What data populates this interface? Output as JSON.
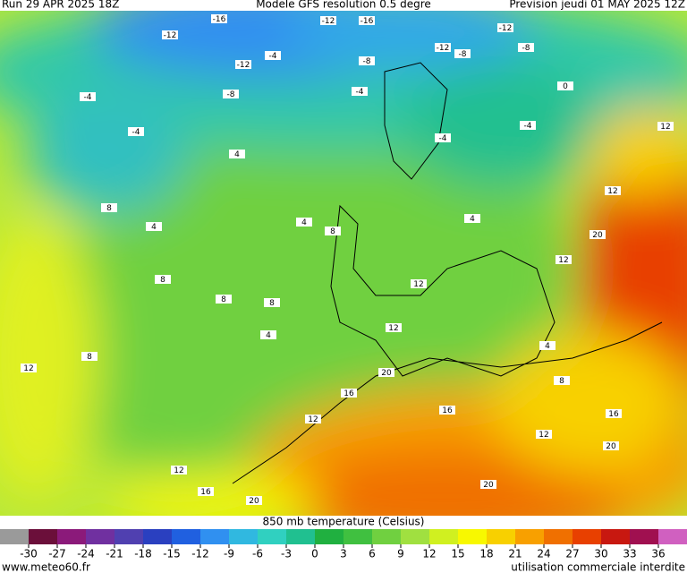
{
  "header": {
    "left": "Run 29 APR 2025 18Z",
    "center": "Modele GFS resolution 0.5 degre",
    "right": "Prevision jeudi 01 MAY 2025 12Z"
  },
  "map": {
    "contour_labels": [
      -16,
      -12,
      -12,
      -16,
      -12,
      -12,
      -4,
      -8,
      -12,
      -8,
      -8,
      -4,
      -8,
      -4,
      -4,
      -4,
      -4,
      0,
      12,
      4,
      8,
      4,
      4,
      8,
      4,
      12,
      20,
      12,
      12,
      8,
      8,
      8,
      4,
      12,
      8,
      12,
      20,
      16,
      12,
      16,
      12,
      16,
      20,
      12,
      16,
      20,
      20,
      4,
      8
    ]
  },
  "colorbar": {
    "title": "850 mb temperature (Celsius)",
    "lim": [
      -33,
      39
    ],
    "ticks": [
      -30,
      -27,
      -24,
      -21,
      -18,
      -15,
      -12,
      -9,
      -6,
      -3,
      0,
      3,
      6,
      9,
      12,
      15,
      18,
      21,
      24,
      27,
      30,
      33,
      36
    ],
    "colors": [
      "#9a9a9a",
      "#6b0f3a",
      "#8b1a7a",
      "#7030a0",
      "#5040b0",
      "#2a40c0",
      "#2060e0",
      "#3090f0",
      "#30b8e0",
      "#30d0c0",
      "#20c090",
      "#20b040",
      "#40c040",
      "#70d040",
      "#a0e040",
      "#d0f020",
      "#f8f800",
      "#f8d000",
      "#f8a000",
      "#f07000",
      "#e84000",
      "#c81810",
      "#a01050",
      "#d060c0"
    ]
  },
  "footer": {
    "left": "www.meteo60.fr",
    "right": "utilisation commerciale interdite"
  }
}
